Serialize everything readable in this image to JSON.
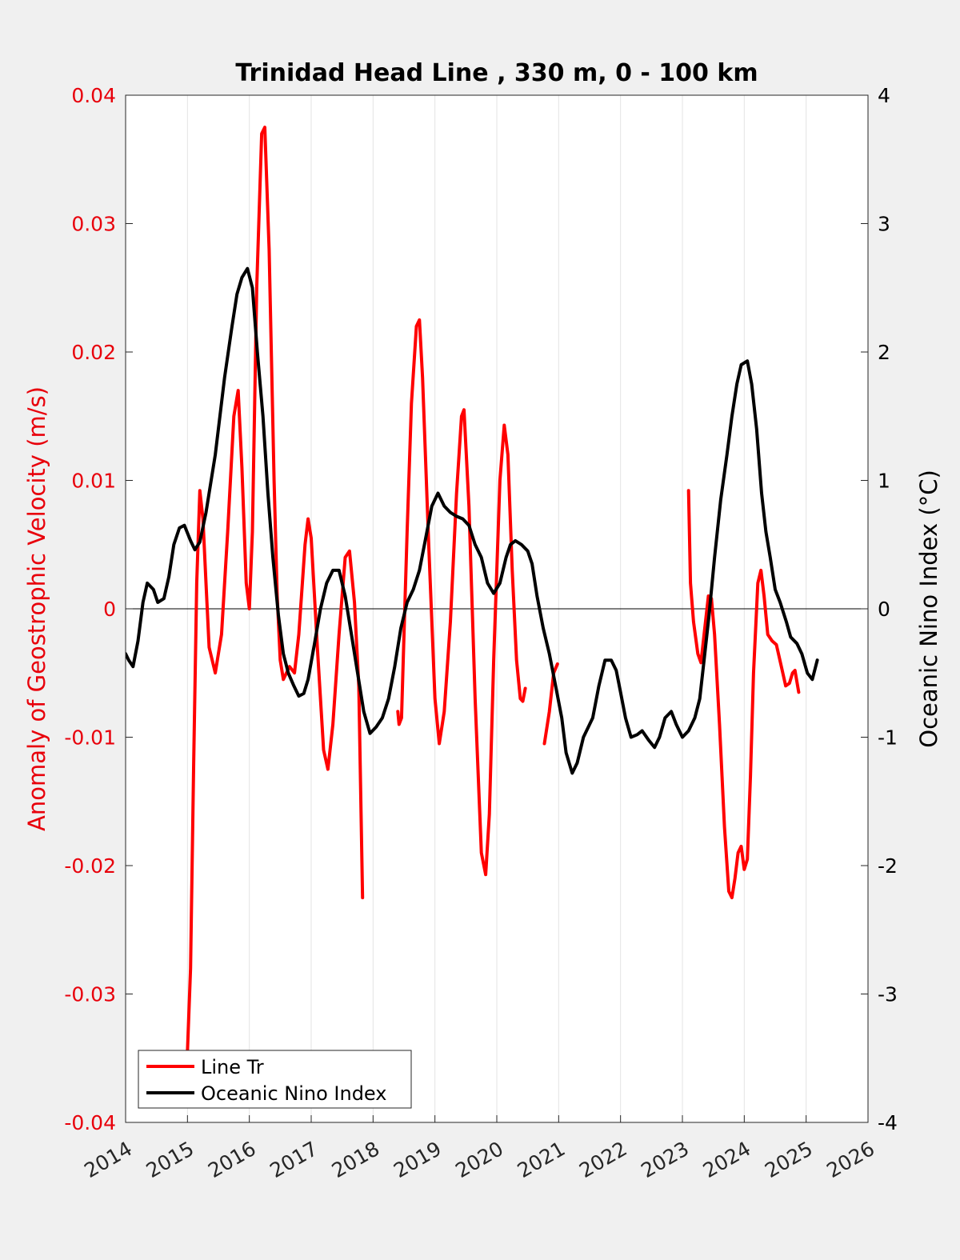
{
  "chart_data": {
    "type": "line",
    "title": "Trinidad Head Line , 330 m, 0 - 100 km",
    "xlabel": "",
    "ylabel_left": "Anomaly of Geostrophic Velocity (m/s)",
    "ylabel_right": "Oceanic Nino Index (°C)",
    "xlim": [
      2014,
      2026
    ],
    "ylim_left": [
      -0.04,
      0.04
    ],
    "ylim_right": [
      -4,
      4
    ],
    "x_ticks": [
      "2014",
      "2015",
      "2016",
      "2017",
      "2018",
      "2019",
      "2020",
      "2021",
      "2022",
      "2023",
      "2024",
      "2025",
      "2026"
    ],
    "y_ticks_left": [
      "-0.04",
      "-0.03",
      "-0.02",
      "-0.01",
      "0",
      "0.01",
      "0.02",
      "0.03",
      "0.04"
    ],
    "y_ticks_right": [
      "-4",
      "-3",
      "-2",
      "-1",
      "0",
      "1",
      "2",
      "3",
      "4"
    ],
    "grid": "vertical",
    "legend_position": "bottom-left",
    "colors": {
      "left_axis": "#e8000b",
      "right_axis": "#000000",
      "zero_line": "#000000",
      "grid": "#e3e3e3"
    },
    "series": [
      {
        "name": "Line Tr",
        "axis": "left",
        "color": "#ff0000",
        "segments": [
          [
            [
              2015.0,
              -0.0345
            ],
            [
              2015.05,
              -0.028
            ],
            [
              2015.1,
              -0.012
            ],
            [
              2015.15,
              0.002
            ],
            [
              2015.2,
              0.0092
            ],
            [
              2015.25,
              0.007
            ],
            [
              2015.3,
              0.002
            ],
            [
              2015.35,
              -0.003
            ],
            [
              2015.45,
              -0.005
            ],
            [
              2015.55,
              -0.002
            ],
            [
              2015.65,
              0.006
            ],
            [
              2015.75,
              0.015
            ],
            [
              2015.82,
              0.017
            ],
            [
              2015.88,
              0.011
            ],
            [
              2015.95,
              0.002
            ],
            [
              2016.0,
              0.0
            ],
            [
              2016.05,
              0.006
            ],
            [
              2016.12,
              0.025
            ],
            [
              2016.2,
              0.037
            ],
            [
              2016.25,
              0.0375
            ],
            [
              2016.32,
              0.028
            ],
            [
              2016.4,
              0.01
            ],
            [
              2016.45,
              0.001
            ],
            [
              2016.5,
              -0.004
            ],
            [
              2016.55,
              -0.0055
            ],
            [
              2016.65,
              -0.0045
            ],
            [
              2016.73,
              -0.005
            ],
            [
              2016.8,
              -0.002
            ],
            [
              2016.9,
              0.005
            ],
            [
              2016.95,
              0.007
            ],
            [
              2017.0,
              0.0055
            ],
            [
              2017.1,
              -0.003
            ],
            [
              2017.2,
              -0.011
            ],
            [
              2017.27,
              -0.0125
            ],
            [
              2017.35,
              -0.009
            ],
            [
              2017.45,
              -0.002
            ],
            [
              2017.55,
              0.004
            ],
            [
              2017.62,
              0.0045
            ],
            [
              2017.7,
              0.0005
            ],
            [
              2017.77,
              -0.006
            ],
            [
              2017.83,
              -0.0225
            ]
          ],
          [
            [
              2018.4,
              -0.008
            ],
            [
              2018.42,
              -0.009
            ],
            [
              2018.46,
              -0.0085
            ],
            [
              2018.5,
              -0.002
            ],
            [
              2018.55,
              0.006
            ],
            [
              2018.62,
              0.016
            ],
            [
              2018.7,
              0.022
            ],
            [
              2018.75,
              0.0225
            ],
            [
              2018.8,
              0.018
            ],
            [
              2018.9,
              0.005
            ],
            [
              2019.0,
              -0.007
            ],
            [
              2019.07,
              -0.0105
            ],
            [
              2019.15,
              -0.008
            ],
            [
              2019.25,
              -0.001
            ],
            [
              2019.35,
              0.009
            ],
            [
              2019.43,
              0.015
            ],
            [
              2019.47,
              0.0155
            ],
            [
              2019.55,
              0.008
            ],
            [
              2019.65,
              -0.007
            ],
            [
              2019.75,
              -0.019
            ],
            [
              2019.82,
              -0.0207
            ],
            [
              2019.88,
              -0.016
            ],
            [
              2019.95,
              -0.004
            ],
            [
              2020.05,
              0.01
            ],
            [
              2020.12,
              0.0143
            ],
            [
              2020.18,
              0.012
            ],
            [
              2020.25,
              0.003
            ],
            [
              2020.32,
              -0.004
            ],
            [
              2020.38,
              -0.007
            ],
            [
              2020.42,
              -0.0072
            ],
            [
              2020.46,
              -0.0062
            ]
          ],
          [
            [
              2020.77,
              -0.0105
            ],
            [
              2020.85,
              -0.008
            ],
            [
              2020.92,
              -0.005
            ],
            [
              2020.98,
              -0.0043
            ]
          ],
          [
            [
              2023.1,
              0.0092
            ],
            [
              2023.13,
              0.002
            ],
            [
              2023.18,
              -0.001
            ],
            [
              2023.25,
              -0.0035
            ],
            [
              2023.3,
              -0.0042
            ],
            [
              2023.35,
              -0.002
            ],
            [
              2023.42,
              0.001
            ],
            [
              2023.47,
              0.0008
            ],
            [
              2023.52,
              -0.002
            ],
            [
              2023.6,
              -0.009
            ],
            [
              2023.68,
              -0.017
            ],
            [
              2023.75,
              -0.022
            ],
            [
              2023.8,
              -0.0225
            ],
            [
              2023.85,
              -0.021
            ],
            [
              2023.9,
              -0.019
            ],
            [
              2023.95,
              -0.0185
            ],
            [
              2024.0,
              -0.0203
            ],
            [
              2024.05,
              -0.0195
            ],
            [
              2024.1,
              -0.013
            ],
            [
              2024.15,
              -0.005
            ],
            [
              2024.22,
              0.002
            ],
            [
              2024.27,
              0.003
            ],
            [
              2024.32,
              0.001
            ],
            [
              2024.38,
              -0.002
            ],
            [
              2024.45,
              -0.0025
            ],
            [
              2024.52,
              -0.0028
            ],
            [
              2024.6,
              -0.0045
            ],
            [
              2024.67,
              -0.006
            ],
            [
              2024.73,
              -0.0058
            ],
            [
              2024.78,
              -0.005
            ],
            [
              2024.82,
              -0.0048
            ],
            [
              2024.88,
              -0.0065
            ]
          ]
        ]
      },
      {
        "name": "Oceanic Nino Index",
        "axis": "right",
        "color": "#000000",
        "segments": [
          [
            [
              2014.0,
              -0.35
            ],
            [
              2014.05,
              -0.4
            ],
            [
              2014.12,
              -0.45
            ],
            [
              2014.2,
              -0.25
            ],
            [
              2014.28,
              0.05
            ],
            [
              2014.35,
              0.2
            ],
            [
              2014.45,
              0.15
            ],
            [
              2014.52,
              0.05
            ],
            [
              2014.62,
              0.08
            ],
            [
              2014.7,
              0.25
            ],
            [
              2014.78,
              0.5
            ],
            [
              2014.87,
              0.63
            ],
            [
              2014.95,
              0.65
            ],
            [
              2015.05,
              0.53
            ],
            [
              2015.12,
              0.46
            ],
            [
              2015.2,
              0.52
            ],
            [
              2015.3,
              0.75
            ],
            [
              2015.45,
              1.2
            ],
            [
              2015.6,
              1.8
            ],
            [
              2015.72,
              2.2
            ],
            [
              2015.8,
              2.45
            ],
            [
              2015.88,
              2.58
            ],
            [
              2015.97,
              2.65
            ],
            [
              2016.05,
              2.5
            ],
            [
              2016.13,
              2.0
            ],
            [
              2016.22,
              1.5
            ],
            [
              2016.3,
              0.9
            ],
            [
              2016.38,
              0.4
            ],
            [
              2016.47,
              -0.05
            ],
            [
              2016.55,
              -0.35
            ],
            [
              2016.63,
              -0.5
            ],
            [
              2016.72,
              -0.6
            ],
            [
              2016.8,
              -0.68
            ],
            [
              2016.88,
              -0.66
            ],
            [
              2016.95,
              -0.55
            ],
            [
              2017.05,
              -0.28
            ],
            [
              2017.15,
              0.0
            ],
            [
              2017.25,
              0.2
            ],
            [
              2017.35,
              0.3
            ],
            [
              2017.45,
              0.3
            ],
            [
              2017.55,
              0.1
            ],
            [
              2017.65,
              -0.2
            ],
            [
              2017.75,
              -0.5
            ],
            [
              2017.85,
              -0.8
            ],
            [
              2017.95,
              -0.97
            ],
            [
              2018.05,
              -0.92
            ],
            [
              2018.15,
              -0.85
            ],
            [
              2018.25,
              -0.7
            ],
            [
              2018.35,
              -0.45
            ],
            [
              2018.45,
              -0.15
            ],
            [
              2018.55,
              0.05
            ],
            [
              2018.65,
              0.15
            ],
            [
              2018.75,
              0.3
            ],
            [
              2018.85,
              0.55
            ],
            [
              2018.95,
              0.8
            ],
            [
              2019.05,
              0.9
            ],
            [
              2019.15,
              0.8
            ],
            [
              2019.25,
              0.75
            ],
            [
              2019.35,
              0.72
            ],
            [
              2019.45,
              0.7
            ],
            [
              2019.55,
              0.65
            ],
            [
              2019.65,
              0.5
            ],
            [
              2019.75,
              0.4
            ],
            [
              2019.85,
              0.2
            ],
            [
              2019.95,
              0.12
            ],
            [
              2020.05,
              0.2
            ],
            [
              2020.15,
              0.4
            ],
            [
              2020.22,
              0.5
            ],
            [
              2020.3,
              0.53
            ],
            [
              2020.4,
              0.5
            ],
            [
              2020.5,
              0.45
            ],
            [
              2020.57,
              0.35
            ],
            [
              2020.65,
              0.1
            ],
            [
              2020.75,
              -0.15
            ],
            [
              2020.85,
              -0.35
            ],
            [
              2020.95,
              -0.6
            ],
            [
              2021.05,
              -0.85
            ],
            [
              2021.12,
              -1.12
            ],
            [
              2021.22,
              -1.28
            ],
            [
              2021.3,
              -1.2
            ],
            [
              2021.4,
              -1.0
            ],
            [
              2021.55,
              -0.85
            ],
            [
              2021.65,
              -0.6
            ],
            [
              2021.75,
              -0.4
            ],
            [
              2021.85,
              -0.4
            ],
            [
              2021.93,
              -0.48
            ],
            [
              2022.0,
              -0.65
            ],
            [
              2022.08,
              -0.85
            ],
            [
              2022.17,
              -1.0
            ],
            [
              2022.27,
              -0.98
            ],
            [
              2022.35,
              -0.95
            ],
            [
              2022.45,
              -1.02
            ],
            [
              2022.55,
              -1.08
            ],
            [
              2022.63,
              -1.0
            ],
            [
              2022.72,
              -0.85
            ],
            [
              2022.82,
              -0.8
            ],
            [
              2022.9,
              -0.9
            ],
            [
              2023.0,
              -1.0
            ],
            [
              2023.1,
              -0.95
            ],
            [
              2023.2,
              -0.85
            ],
            [
              2023.28,
              -0.7
            ],
            [
              2023.35,
              -0.4
            ],
            [
              2023.43,
              -0.05
            ],
            [
              2023.52,
              0.4
            ],
            [
              2023.62,
              0.85
            ],
            [
              2023.72,
              1.2
            ],
            [
              2023.8,
              1.5
            ],
            [
              2023.88,
              1.75
            ],
            [
              2023.95,
              1.9
            ],
            [
              2024.05,
              1.93
            ],
            [
              2024.12,
              1.75
            ],
            [
              2024.2,
              1.4
            ],
            [
              2024.28,
              0.9
            ],
            [
              2024.35,
              0.6
            ],
            [
              2024.42,
              0.4
            ],
            [
              2024.5,
              0.15
            ],
            [
              2024.58,
              0.05
            ],
            [
              2024.68,
              -0.1
            ],
            [
              2024.75,
              -0.22
            ],
            [
              2024.85,
              -0.27
            ],
            [
              2024.93,
              -0.35
            ],
            [
              2025.02,
              -0.5
            ],
            [
              2025.1,
              -0.55
            ],
            [
              2025.18,
              -0.4
            ]
          ]
        ]
      }
    ]
  }
}
